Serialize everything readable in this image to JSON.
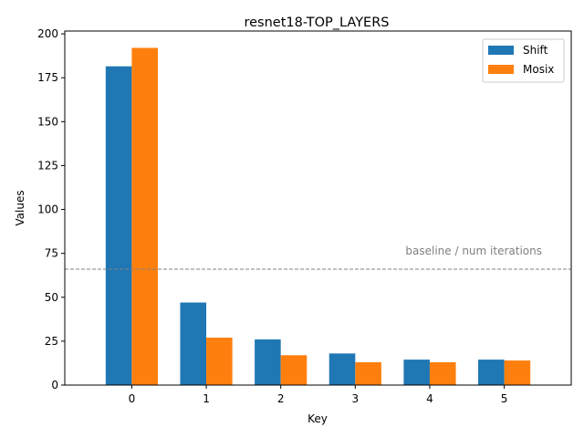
{
  "chart_data": {
    "type": "bar",
    "title": "resnet18-TOP_LAYERS",
    "xlabel": "Key",
    "ylabel": "Values",
    "categories": [
      "0",
      "1",
      "2",
      "3",
      "4",
      "5"
    ],
    "series": [
      {
        "name": "Shift",
        "color": "#1f77b4",
        "values": [
          181.5,
          47,
          26,
          18,
          14.5,
          14.5
        ]
      },
      {
        "name": "Mosix",
        "color": "#ff7f0e",
        "values": [
          192,
          27,
          17,
          13,
          13,
          14
        ]
      }
    ],
    "ylim": [
      0,
      201.6
    ],
    "yticks": [
      0,
      25,
      50,
      75,
      100,
      125,
      150,
      175,
      200
    ],
    "reference_line": {
      "value": 66,
      "label": "baseline / num iterations",
      "color": "#808080",
      "style": "dashed"
    },
    "legend": "top-right",
    "grid": false
  }
}
